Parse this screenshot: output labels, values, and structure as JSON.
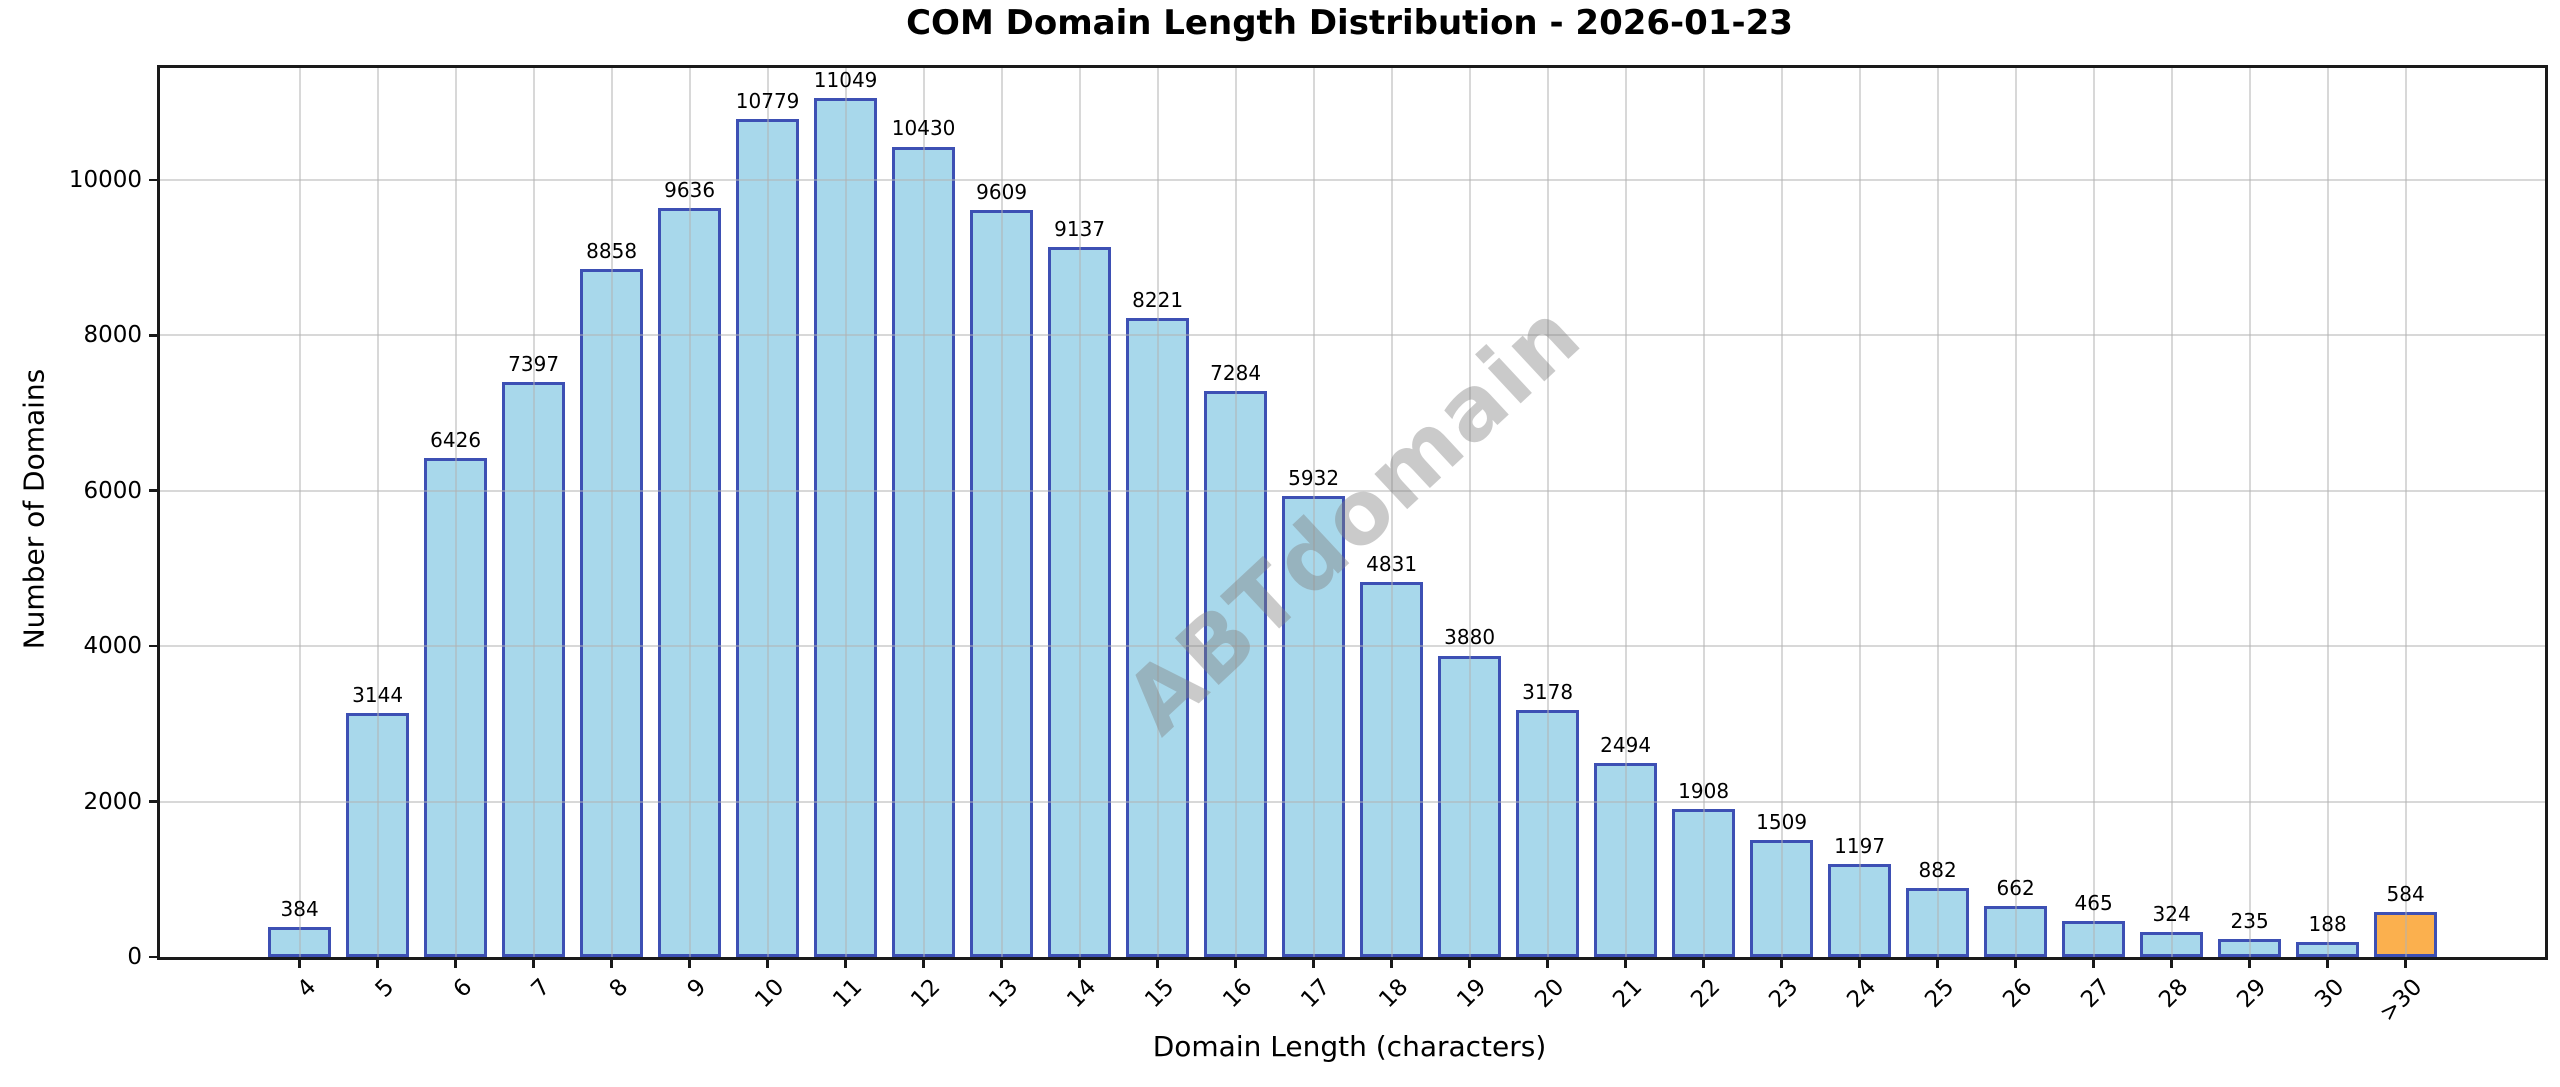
{
  "chart_data": {
    "type": "bar",
    "title": "COM Domain Length Distribution - 2026-01-23",
    "xlabel": "Domain Length (characters)",
    "ylabel": "Number of Domains",
    "categories": [
      "4",
      "5",
      "6",
      "7",
      "8",
      "9",
      "10",
      "11",
      "12",
      "13",
      "14",
      "15",
      "16",
      "17",
      "18",
      "19",
      "20",
      "21",
      "22",
      "23",
      "24",
      "25",
      "26",
      "27",
      "28",
      "29",
      "30",
      ">30"
    ],
    "values": [
      384,
      3144,
      6426,
      7397,
      8858,
      9636,
      10779,
      11049,
      10430,
      9609,
      9137,
      8221,
      7284,
      5932,
      4831,
      3880,
      3178,
      2494,
      1908,
      1509,
      1197,
      882,
      662,
      465,
      324,
      235,
      188,
      584
    ],
    "yticks": [
      0,
      2000,
      4000,
      6000,
      8000,
      10000
    ],
    "ylim": [
      0,
      11440
    ],
    "grid": true,
    "legend_position": "none",
    "watermark": "ABTdomain",
    "highlight_category": ">30",
    "colors": {
      "bar_fill": "#A8D8EB",
      "bar_edge": "#3D50B4",
      "highlight_fill": "#FBB04E",
      "highlight_edge": "#3D50B4",
      "grid": "#DCDCDC",
      "watermark": "#808080",
      "axis": "#1a1a1a"
    }
  }
}
